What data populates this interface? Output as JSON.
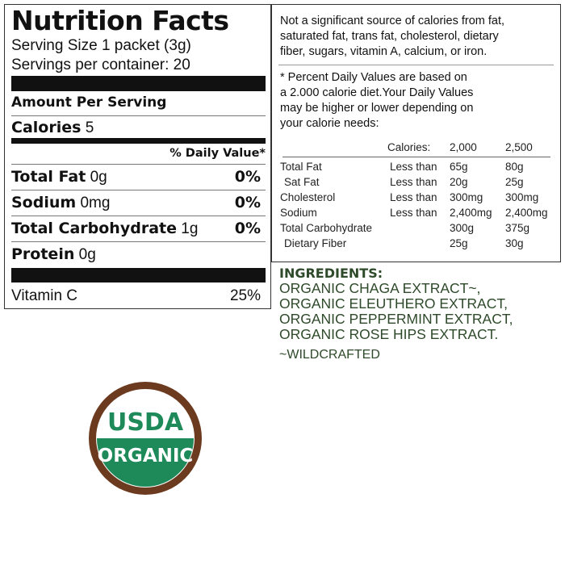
{
  "nutrition_facts": {
    "title": "Nutrition Facts",
    "serving_size": "Serving Size 1 packet (3g)",
    "servings_per_container": "Servings per container: 20",
    "amount_per_serving": "Amount Per Serving",
    "calories_label": "Calories",
    "calories_value": "5",
    "daily_value_header": "% Daily Value*",
    "rows": [
      {
        "label": "Total Fat",
        "amount": "0g",
        "dv": "0%"
      },
      {
        "label": "Sodium",
        "amount": "0mg",
        "dv": "0%"
      },
      {
        "label": "Total Carbohydrate",
        "amount": "1g",
        "dv": "0%"
      },
      {
        "label": "Protein",
        "amount": "0g",
        "dv": ""
      }
    ],
    "vitamin": {
      "label": "Vitamin C",
      "dv": "25%"
    }
  },
  "footnote": {
    "not_significant": [
      "Not a significant source of calories from fat,",
      "saturated fat, trans fat, cholesterol, dietary",
      "fiber, sugars, vitamin A, calcium, or iron."
    ],
    "percent_note": [
      "* Percent Daily Values are based on",
      "a 2.000 calorie diet.Your Daily Values",
      "may be higher or lower depending on",
      "your calorie needs:"
    ],
    "table": {
      "header": [
        "",
        "",
        "Calories:",
        "2,000",
        "2,500"
      ],
      "rows": [
        [
          "Total Fat",
          "Less than",
          "65g",
          "80g"
        ],
        [
          " Sat Fat",
          "Less than",
          "20g",
          "25g"
        ],
        [
          "Cholesterol",
          "Less than",
          "300mg",
          "300mg"
        ],
        [
          "Sodium",
          "Less than",
          "2,400mg",
          "2,400mg"
        ],
        [
          "Total Carbohydrate",
          "",
          "300g",
          "375g"
        ],
        [
          " Dietary Fiber",
          "",
          "25g",
          "30g"
        ]
      ]
    }
  },
  "ingredients": {
    "title": "INGREDIENTS:",
    "lines": [
      "ORGANIC CHAGA EXTRACT~,",
      "ORGANIC ELEUTHERO EXTRACT,",
      "ORGANIC PEPPERMINT EXTRACT,",
      "ORGANIC ROSE HIPS EXTRACT."
    ],
    "note": "~WILDCRAFTED",
    "color": "#2e4a2a"
  },
  "usda_logo": {
    "top": "USDA",
    "bottom": "ORGANIC",
    "colors": {
      "ring": "#6b3a1f",
      "green": "#1e8a5a"
    }
  }
}
